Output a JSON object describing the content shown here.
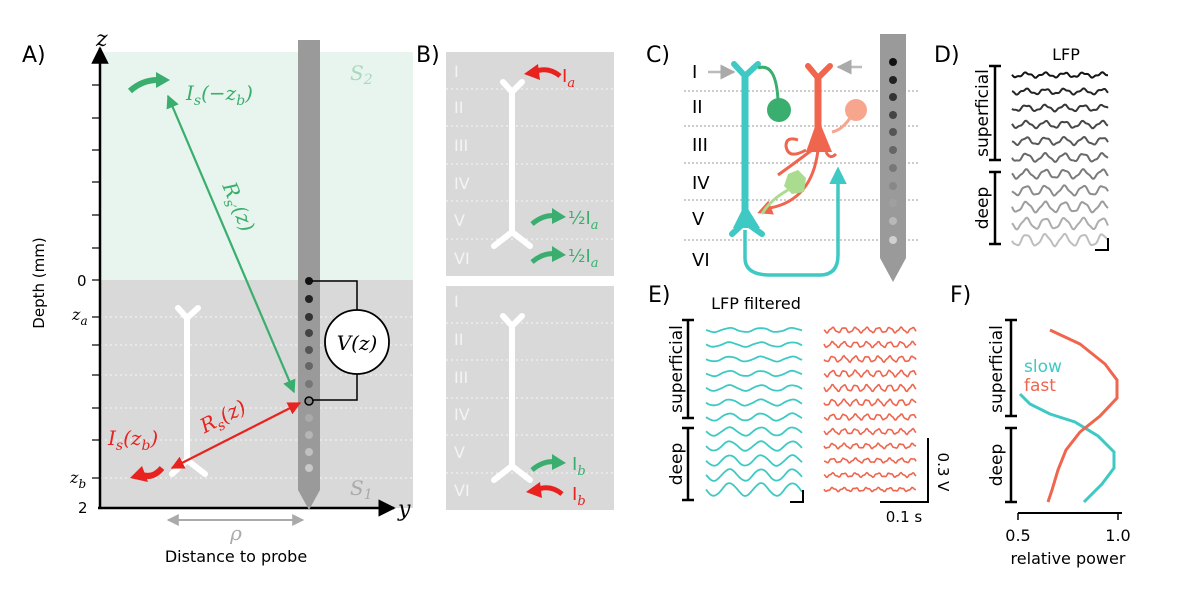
{
  "colors": {
    "green": "#3aae6e",
    "red": "#e8231f",
    "cyan": "#3ec9c4",
    "orange": "#f0654d",
    "light_green": "#a9dc8e",
    "gray_bg": "#d9d9d9",
    "mint_bg": "#e8f5ee",
    "probe": "#9a9a9a"
  },
  "panel_a": {
    "label": "A)",
    "z_axis": "z",
    "y_axis": "y",
    "ylabel": "Depth (mm)",
    "tick_0": "0",
    "tick_za_main": "z",
    "tick_za_sub": "a",
    "tick_zb_main": "z",
    "tick_zb_sub": "b",
    "tick_2": "2",
    "region_top": "S",
    "region_top_sub": "2",
    "region_bottom": "S",
    "region_bottom_sub": "1",
    "voltage": "V(z)",
    "green_current": "I",
    "green_current_sub": "s",
    "green_current_arg": "(−z",
    "green_current_arg_sub": "b",
    "green_current_close": ")",
    "green_distance": "R",
    "green_distance_sub": "s′",
    "green_distance_arg": "(z)",
    "red_current": "I",
    "red_current_sub": "s",
    "red_current_arg": "(z",
    "red_current_arg_sub": "b",
    "red_current_close": ")",
    "red_distance": "R",
    "red_distance_sub": "s",
    "red_distance_arg": "(z)",
    "rho": "ρ",
    "xlabel": "Distance to probe"
  },
  "panel_b": {
    "label": "B)",
    "layers": [
      "I",
      "II",
      "III",
      "IV",
      "V",
      "VI"
    ],
    "top_in": "I",
    "top_in_sub": "a",
    "top_out1": "½I",
    "top_out1_sub": "a",
    "top_out2": "½I",
    "top_out2_sub": "a",
    "bot_out": "I",
    "bot_out_sub": "b",
    "bot_in": "I",
    "bot_in_sub": "b"
  },
  "panel_c": {
    "label": "C)",
    "layers": [
      "I",
      "II",
      "III",
      "IV",
      "V",
      "VI"
    ]
  },
  "panel_d": {
    "label": "D)",
    "title": "LFP",
    "superficial": "superficial",
    "deep": "deep"
  },
  "panel_e": {
    "label": "E)",
    "title": "LFP filtered",
    "superficial": "superficial",
    "deep": "deep",
    "scale_v": "0.3 V",
    "scale_t": "0.1 s"
  },
  "panel_f": {
    "label": "F)",
    "superficial": "superficial",
    "deep": "deep",
    "legend_slow": "slow",
    "legend_fast": "fast",
    "tick_05": "0.5",
    "tick_10": "1.0",
    "xlabel": "relative power"
  }
}
